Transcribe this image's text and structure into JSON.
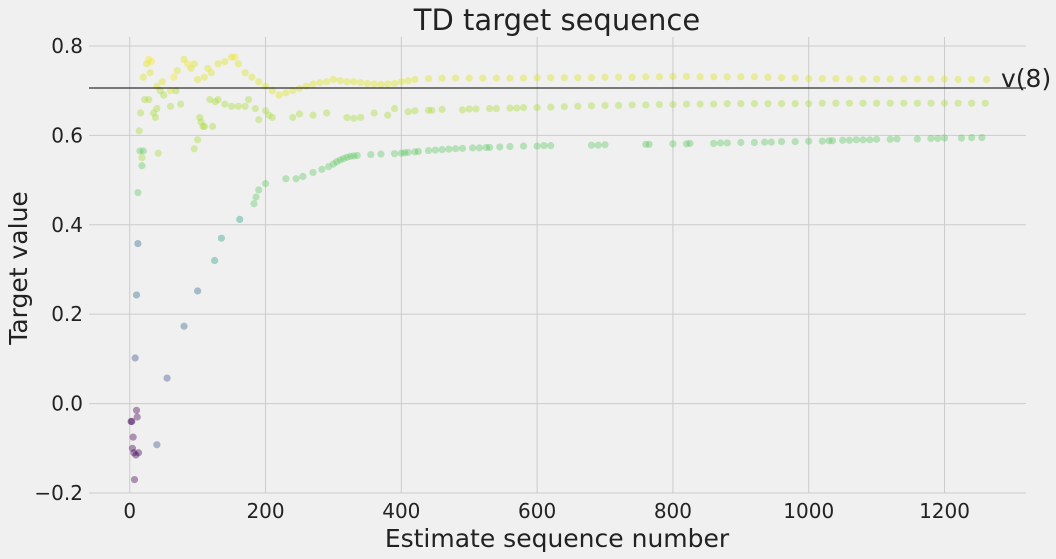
{
  "chart_data": {
    "type": "scatter",
    "title": "TD target sequence",
    "xlabel": "Estimate sequence number",
    "ylabel": "Target value",
    "xlim": [
      -60,
      1320
    ],
    "ylim": [
      -0.2,
      0.82
    ],
    "xticks": [
      0,
      200,
      400,
      600,
      800,
      1000,
      1200
    ],
    "yticks": [
      -0.2,
      0.0,
      0.2,
      0.4,
      0.6,
      0.8
    ],
    "xtick_labels": [
      "0",
      "200",
      "400",
      "600",
      "800",
      "1000",
      "1200"
    ],
    "ytick_labels": [
      "−0.2",
      "0.0",
      "0.2",
      "0.4",
      "0.6",
      "0.8"
    ],
    "grid": true,
    "reference_line": {
      "y": 0.706,
      "label": "v(8)",
      "color": "#000000"
    },
    "colormap": [
      "#440154",
      "#3b528b",
      "#21918c",
      "#5ec962",
      "#a8db34",
      "#fde725"
    ],
    "marker_alpha": 0.4,
    "series": [
      {
        "color": "#440154",
        "x": [
          2,
          3,
          4,
          5,
          6,
          7,
          9,
          10,
          11,
          13
        ],
        "y": [
          -0.04,
          -0.04,
          -0.1,
          -0.075,
          -0.11,
          -0.17,
          -0.115,
          -0.015,
          -0.03,
          -0.11
        ]
      },
      {
        "color": "#3b528b",
        "x": [
          8,
          40,
          55
        ],
        "y": [
          0.102,
          -0.092,
          0.057
        ]
      },
      {
        "color": "#31688e",
        "x": [
          10,
          12,
          80,
          100
        ],
        "y": [
          0.243,
          0.358,
          0.173,
          0.252
        ]
      },
      {
        "color": "#2e9f8a",
        "x": [
          125,
          135,
          162
        ],
        "y": [
          0.32,
          0.37,
          0.412
        ]
      },
      {
        "color": "#5ec962",
        "x": [
          12,
          15,
          18,
          20,
          183,
          186,
          190,
          200,
          230,
          245,
          255,
          270,
          283,
          293,
          300,
          305,
          310,
          315,
          320,
          325,
          330,
          335,
          355,
          370,
          390,
          400,
          405,
          410,
          420,
          425,
          440,
          450,
          460,
          470,
          480,
          490,
          505,
          515,
          525,
          530,
          545,
          560,
          580,
          600,
          610,
          620,
          680,
          690,
          700,
          760,
          765,
          800,
          820,
          825,
          860,
          870,
          880,
          900,
          920,
          935,
          945,
          960,
          980,
          1000,
          1020,
          1030,
          1035,
          1050,
          1060,
          1070,
          1080,
          1090,
          1100,
          1120,
          1130,
          1160,
          1180,
          1190,
          1200,
          1225,
          1240,
          1255
        ],
        "y": [
          0.472,
          0.565,
          0.532,
          0.565,
          0.447,
          0.462,
          0.478,
          0.492,
          0.503,
          0.503,
          0.508,
          0.517,
          0.524,
          0.53,
          0.536,
          0.541,
          0.545,
          0.548,
          0.551,
          0.553,
          0.554,
          0.555,
          0.557,
          0.558,
          0.559,
          0.56,
          0.561,
          0.562,
          0.563,
          0.564,
          0.566,
          0.567,
          0.568,
          0.569,
          0.57,
          0.571,
          0.572,
          0.572,
          0.573,
          0.573,
          0.574,
          0.575,
          0.576,
          0.576,
          0.577,
          0.577,
          0.578,
          0.578,
          0.579,
          0.58,
          0.58,
          0.581,
          0.581,
          0.582,
          0.582,
          0.583,
          0.583,
          0.584,
          0.584,
          0.585,
          0.585,
          0.586,
          0.586,
          0.587,
          0.587,
          0.588,
          0.588,
          0.589,
          0.589,
          0.59,
          0.59,
          0.59,
          0.591,
          0.591,
          0.592,
          0.592,
          0.593,
          0.593,
          0.594,
          0.594,
          0.595,
          0.595
        ]
      },
      {
        "color": "#a8db34",
        "x": [
          14,
          16,
          18,
          22,
          28,
          35,
          38,
          40,
          42,
          45,
          50,
          60,
          68,
          75,
          95,
          100,
          103,
          105,
          108,
          110,
          118,
          122,
          126,
          130,
          140,
          150,
          160,
          170,
          175,
          185,
          190,
          200,
          205,
          210,
          240,
          250,
          270,
          290,
          320,
          330,
          340,
          360,
          380,
          390,
          410,
          420,
          440,
          445,
          460,
          490,
          500,
          510,
          530,
          540,
          560,
          570,
          580,
          600,
          620,
          640,
          660,
          680,
          700,
          720,
          740,
          760,
          780,
          800,
          820,
          840,
          860,
          880,
          900,
          920,
          940,
          960,
          980,
          1000,
          1020,
          1040,
          1060,
          1080,
          1100,
          1120,
          1140,
          1160,
          1180,
          1200,
          1220,
          1240,
          1260
        ],
        "y": [
          0.61,
          0.65,
          0.55,
          0.68,
          0.68,
          0.65,
          0.64,
          0.66,
          0.56,
          0.7,
          0.69,
          0.665,
          0.7,
          0.67,
          0.57,
          0.59,
          0.64,
          0.63,
          0.62,
          0.62,
          0.68,
          0.62,
          0.675,
          0.68,
          0.67,
          0.665,
          0.665,
          0.665,
          0.68,
          0.66,
          0.635,
          0.655,
          0.645,
          0.64,
          0.64,
          0.648,
          0.645,
          0.65,
          0.64,
          0.638,
          0.64,
          0.65,
          0.645,
          0.66,
          0.653,
          0.655,
          0.656,
          0.656,
          0.658,
          0.657,
          0.659,
          0.659,
          0.66,
          0.66,
          0.661,
          0.661,
          0.662,
          0.662,
          0.663,
          0.664,
          0.665,
          0.666,
          0.667,
          0.667,
          0.668,
          0.668,
          0.669,
          0.669,
          0.67,
          0.67,
          0.67,
          0.671,
          0.671,
          0.671,
          0.671,
          0.671,
          0.671,
          0.671,
          0.672,
          0.672,
          0.672,
          0.672,
          0.672,
          0.672,
          0.672,
          0.672,
          0.672,
          0.672,
          0.672,
          0.672,
          0.672
        ]
      },
      {
        "color": "#dce319",
        "x": [
          20,
          25,
          30,
          40,
          48,
          60,
          70,
          80,
          90,
          95,
          100,
          110,
          115,
          120,
          130,
          140,
          150,
          160,
          170,
          180,
          190,
          200,
          210,
          220,
          230,
          240,
          250,
          260,
          270,
          280,
          290,
          300,
          310,
          320,
          330,
          340,
          350,
          360,
          370,
          380,
          390,
          400,
          410,
          420,
          440,
          460,
          480,
          500,
          520,
          540,
          560,
          580,
          600,
          620,
          640,
          660,
          680,
          700,
          720,
          740,
          760,
          780,
          800,
          820,
          840,
          860,
          880,
          900,
          920,
          940,
          960,
          980,
          1000,
          1020,
          1040,
          1060,
          1080,
          1100,
          1120,
          1140,
          1160,
          1180,
          1200,
          1220,
          1240,
          1262
        ],
        "y": [
          0.73,
          0.76,
          0.74,
          0.71,
          0.72,
          0.7,
          0.745,
          0.77,
          0.75,
          0.76,
          0.725,
          0.73,
          0.75,
          0.74,
          0.76,
          0.765,
          0.775,
          0.76,
          0.74,
          0.73,
          0.72,
          0.71,
          0.7,
          0.69,
          0.695,
          0.7,
          0.705,
          0.71,
          0.715,
          0.718,
          0.72,
          0.725,
          0.722,
          0.72,
          0.72,
          0.718,
          0.716,
          0.715,
          0.714,
          0.715,
          0.716,
          0.72,
          0.722,
          0.725,
          0.727,
          0.728,
          0.728,
          0.728,
          0.728,
          0.728,
          0.728,
          0.728,
          0.729,
          0.729,
          0.729,
          0.729,
          0.729,
          0.73,
          0.73,
          0.73,
          0.731,
          0.731,
          0.732,
          0.732,
          0.731,
          0.731,
          0.731,
          0.731,
          0.731,
          0.73,
          0.729,
          0.728,
          0.727,
          0.727,
          0.727,
          0.726,
          0.726,
          0.726,
          0.726,
          0.726,
          0.726,
          0.726,
          0.726,
          0.725,
          0.725,
          0.725
        ]
      },
      {
        "color": "#f6e620",
        "x": [
          28,
          32,
          65,
          85,
          155
        ],
        "y": [
          0.77,
          0.765,
          0.73,
          0.76,
          0.775
        ]
      }
    ]
  }
}
